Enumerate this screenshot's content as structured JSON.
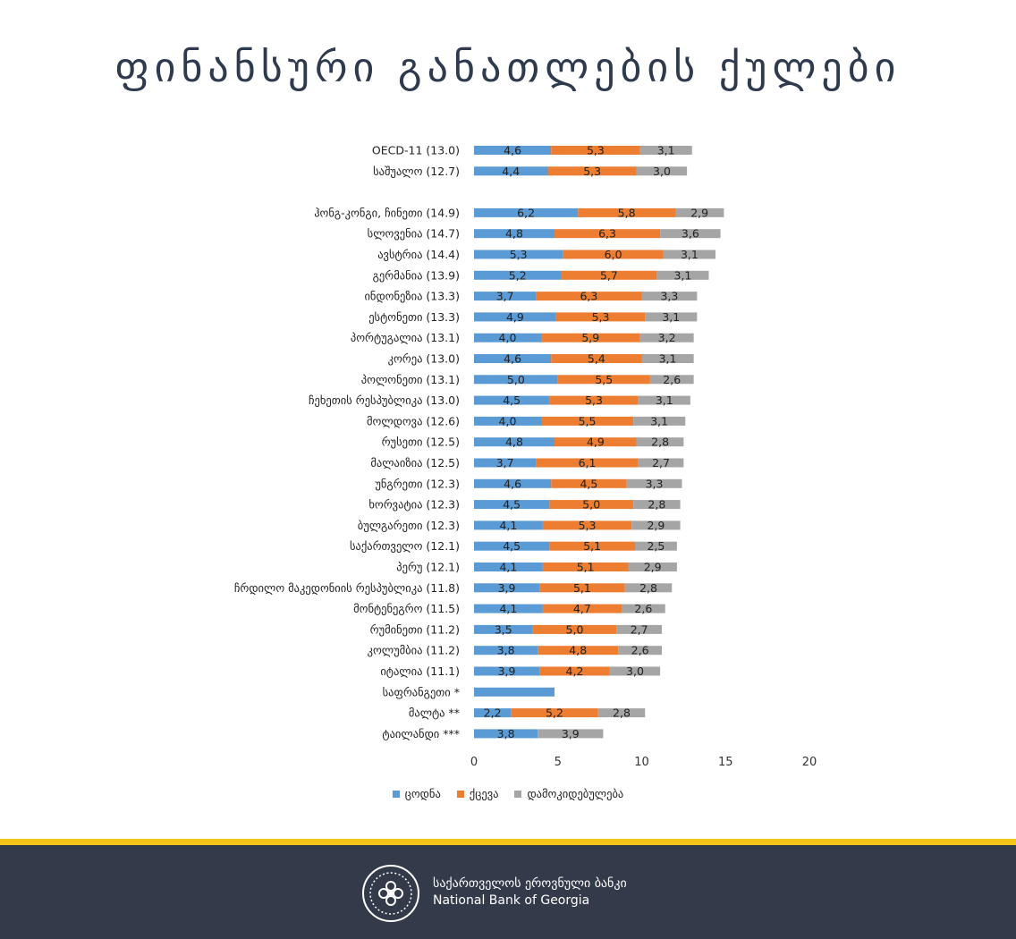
{
  "title": "ფინანსური განათლების ქულები",
  "colors": {
    "series": [
      "#5b9bd5",
      "#ed7d31",
      "#a5a5a5"
    ],
    "title": "#2f3a4e",
    "footer_bg": "#333b4a",
    "stripe": "#f5c518"
  },
  "chart_data": {
    "type": "bar",
    "orientation": "horizontal",
    "stacked": true,
    "xlim": [
      0,
      20
    ],
    "xticks": [
      0,
      5,
      10,
      15,
      20
    ],
    "grid": false,
    "legend_position": "bottom",
    "categories": [
      "OECD-11 (13.0)",
      "საშუალო (12.7)",
      "",
      "ჰონგ-კონგი, ჩინეთი (14.9)",
      "სლოვენია (14.7)",
      "ავსტრია (14.4)",
      "გერმანია (13.9)",
      "ინდონეზია (13.3)",
      "ესტონეთი (13.3)",
      "პორტუგალია (13.1)",
      "კორეა (13.0)",
      "პოლონეთი (13.1)",
      "ჩეხეთის რესპუბლიკა (13.0)",
      "მოლდოვა (12.6)",
      "რუსეთი (12.5)",
      "მალაიზია (12.5)",
      "უნგრეთი (12.3)",
      "ხორვატია (12.3)",
      "ბულგარეთი (12.3)",
      "საქართველო (12.1)",
      "პერუ (12.1)",
      "ჩრდილო მაკედონიის რესპუბლიკა (11.8)",
      "მონტენეგრო (11.5)",
      "რუმინეთი (11.2)",
      "კოლუმბია (11.2)",
      "იტალია (11.1)",
      "საფრანგეთი *",
      "მალტა **",
      "ტაილანდი ***"
    ],
    "series": [
      {
        "name": "ცოდნა",
        "values": [
          4.6,
          4.4,
          null,
          6.2,
          4.8,
          5.3,
          5.2,
          3.7,
          4.9,
          4.0,
          4.6,
          5.0,
          4.5,
          4.0,
          4.8,
          3.7,
          4.6,
          4.5,
          4.1,
          4.5,
          4.1,
          3.9,
          4.1,
          3.5,
          3.8,
          3.9,
          4.8,
          2.2,
          3.8
        ],
        "labels": [
          "4,6",
          "4,4",
          "",
          "6,2",
          "4,8",
          "5,3",
          "5,2",
          "3,7",
          "4,9",
          "4,0",
          "4,6",
          "5,0",
          "4,5",
          "4,0",
          "4,8",
          "3,7",
          "4,6",
          "4,5",
          "4,1",
          "4,5",
          "4,1",
          "3,9",
          "4,1",
          "3,5",
          "3,8",
          "3,9",
          "",
          "2,2",
          "3,8"
        ]
      },
      {
        "name": "ქცევა",
        "values": [
          5.3,
          5.3,
          null,
          5.8,
          6.3,
          6.0,
          5.7,
          6.3,
          5.3,
          5.9,
          5.4,
          5.5,
          5.3,
          5.5,
          4.9,
          6.1,
          4.5,
          5.0,
          5.3,
          5.1,
          5.1,
          5.1,
          4.7,
          5.0,
          4.8,
          4.2,
          null,
          5.2,
          null
        ],
        "labels": [
          "5,3",
          "5,3",
          "",
          "5,8",
          "6,3",
          "6,0",
          "5,7",
          "6,3",
          "5,3",
          "5,9",
          "5,4",
          "5,5",
          "5,3",
          "5,5",
          "4,9",
          "6,1",
          "4,5",
          "5,0",
          "5,3",
          "5,1",
          "5,1",
          "5,1",
          "4,7",
          "5,0",
          "4,8",
          "4,2",
          "",
          "5,2",
          ""
        ]
      },
      {
        "name": "დამოკიდებულება",
        "values": [
          3.1,
          3.0,
          null,
          2.9,
          3.6,
          3.1,
          3.1,
          3.3,
          3.1,
          3.2,
          3.1,
          2.6,
          3.1,
          3.1,
          2.8,
          2.7,
          3.3,
          2.8,
          2.9,
          2.5,
          2.9,
          2.8,
          2.6,
          2.7,
          2.6,
          3.0,
          null,
          2.8,
          3.9
        ],
        "labels": [
          "3,1",
          "3,0",
          "",
          "2,9",
          "3,6",
          "3,1",
          "3,1",
          "3,3",
          "3,1",
          "3,2",
          "3,1",
          "2,6",
          "3,1",
          "3,1",
          "2,8",
          "2,7",
          "3,3",
          "2,8",
          "2,9",
          "2,5",
          "2,9",
          "2,8",
          "2,6",
          "2,7",
          "2,6",
          "3,0",
          "",
          "2,8",
          "3,9"
        ]
      }
    ]
  },
  "footer": {
    "org_name_ka": "საქართველოს ეროვნული ბანკი",
    "org_name_en": "National Bank of Georgia",
    "logo_icon": "nbg-seal-icon"
  }
}
